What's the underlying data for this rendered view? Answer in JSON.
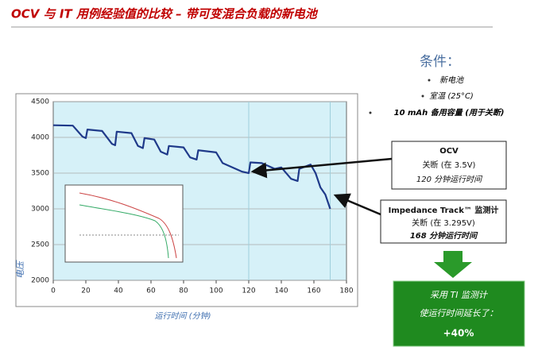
{
  "title": "OCV 与 IT 用例经验值的比较 – 带可变混合负载的新电池",
  "conditions": {
    "heading": "条件：",
    "items": [
      "新电池",
      "室温 (25°C)",
      "10 mAh 备用容量 (用于关断)"
    ]
  },
  "chart_data": {
    "type": "line",
    "y_label": "电压",
    "x_label": "运行时间 (分钟)",
    "x": [
      0,
      12,
      18,
      20,
      21,
      30,
      36,
      38,
      39,
      48,
      52,
      55,
      56,
      62,
      66,
      70,
      71,
      80,
      84,
      88,
      89,
      100,
      104,
      112,
      116,
      120,
      121,
      128,
      136,
      140,
      146,
      150,
      151,
      158,
      161,
      164,
      167,
      170
    ],
    "series": [
      {
        "color": "#1f3a8a",
        "values": [
          4170,
          4165,
          4010,
          3990,
          4110,
          4090,
          3910,
          3890,
          4080,
          4060,
          3880,
          3850,
          3990,
          3970,
          3800,
          3760,
          3880,
          3860,
          3720,
          3690,
          3820,
          3790,
          3640,
          3560,
          3520,
          3500,
          3650,
          3640,
          3560,
          3580,
          3420,
          3390,
          3560,
          3620,
          3500,
          3300,
          3200,
          3000
        ]
      }
    ],
    "vlines": [
      120,
      170
    ],
    "xlim": [
      0,
      180
    ],
    "xticks": [
      0,
      20,
      40,
      60,
      80,
      100,
      120,
      140,
      160,
      180
    ],
    "ylim": [
      2000,
      4500
    ],
    "yticks": [
      2000,
      2500,
      3000,
      3500,
      4000,
      4500
    ],
    "grid": true
  },
  "callouts": [
    {
      "lines": [
        "OCV",
        "关断 (在 3.5V)",
        "120 分钟运行时间"
      ]
    },
    {
      "lines": [
        "Impedance Track™ 监测计",
        "关断 (在 3.295V)",
        "168 分钟运行时间"
      ]
    }
  ],
  "result": {
    "lines": [
      "采用 TI 监测计",
      "使运行时间延长了：",
      "+40%"
    ]
  }
}
